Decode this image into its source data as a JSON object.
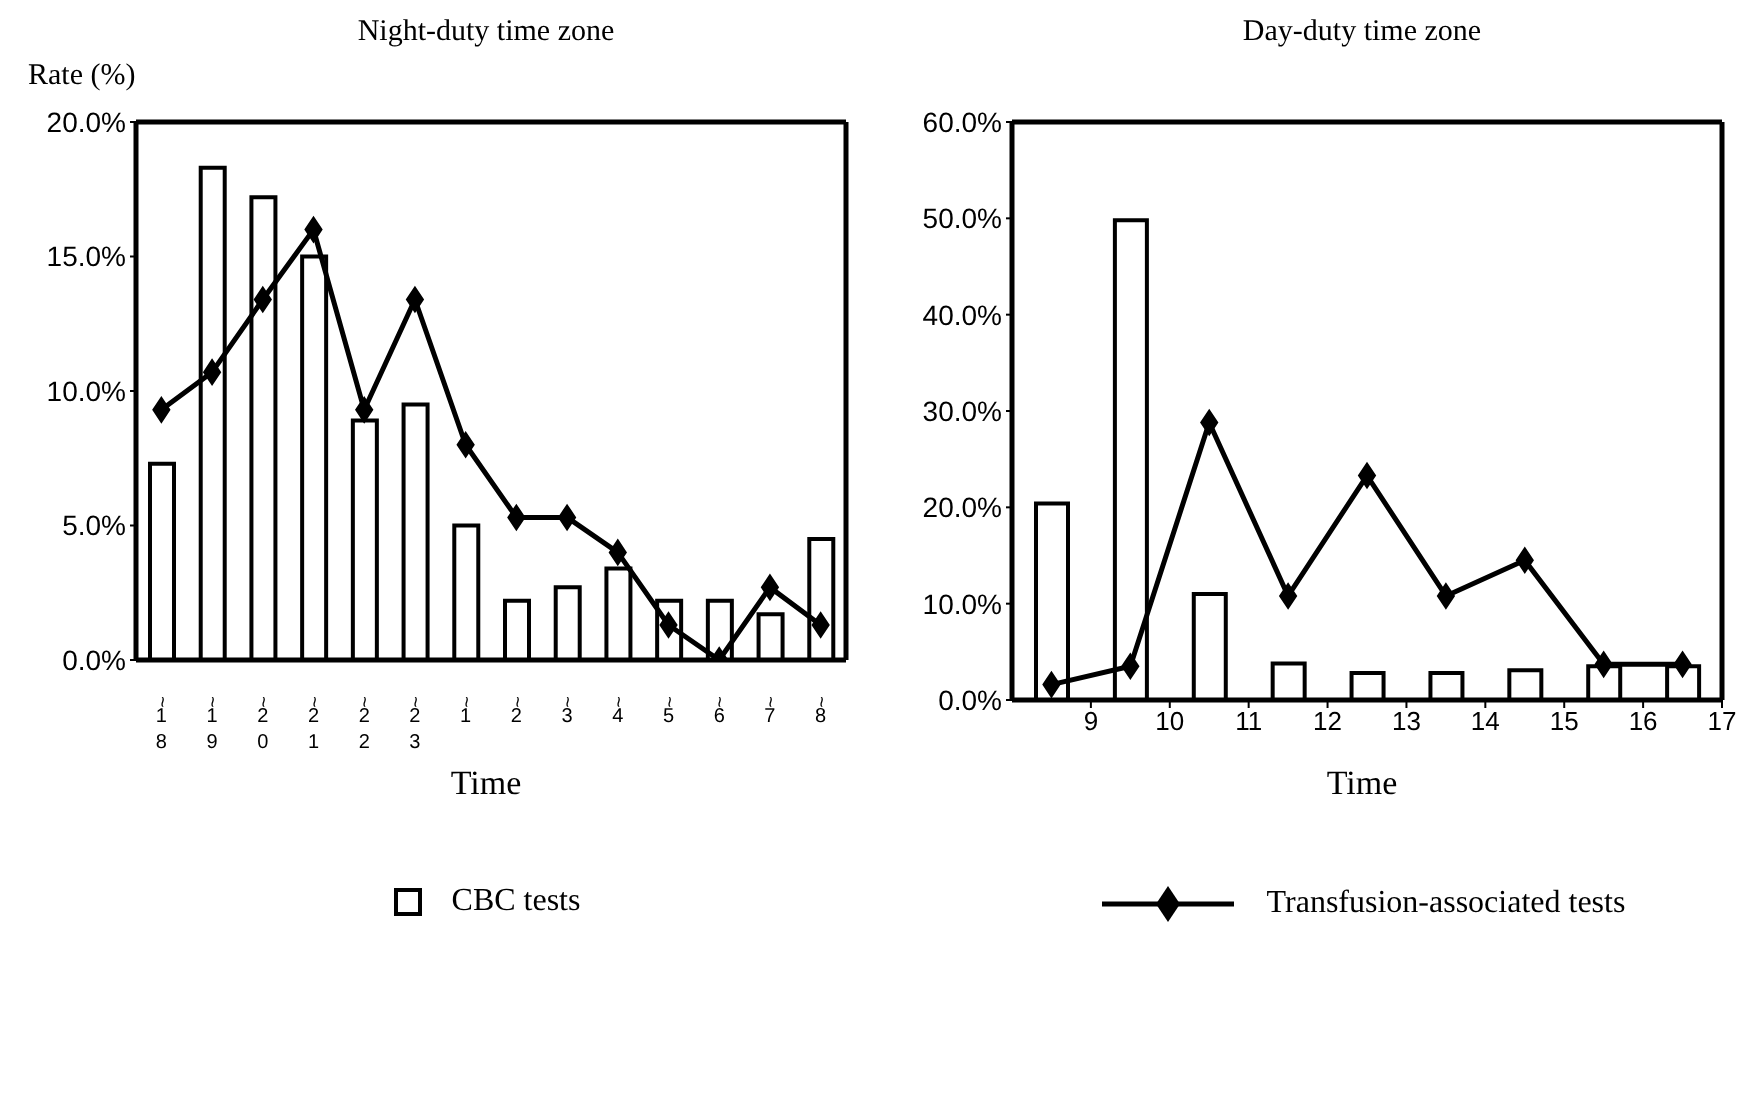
{
  "chart_data": [
    {
      "type": "bar",
      "title": "Night-duty time zone",
      "ylabel": "Rate (%)",
      "xlabel": "Time",
      "categories": [
        "~18",
        "~19",
        "~20",
        "~21",
        "~22",
        "~23",
        "~1",
        "~2",
        "~3",
        "~4",
        "~5",
        "~6",
        "~7",
        "~8"
      ],
      "series": [
        {
          "name": "CBC tests",
          "color": "#000000",
          "values": [
            7.3,
            18.3,
            17.2,
            15.0,
            8.9,
            9.5,
            5.0,
            2.2,
            2.7,
            3.4,
            2.2,
            2.2,
            1.7,
            4.5
          ]
        },
        {
          "type": "line",
          "color": "#000000",
          "marker": "diamond",
          "values": [
            9.3,
            10.7,
            13.4,
            16.0,
            9.3,
            13.4,
            8.0,
            5.3,
            5.3,
            4.0,
            1.3,
            0,
            2.7,
            1.3
          ]
        }
      ],
      "ylim": [
        0,
        20
      ],
      "yticks": [
        {
          "value": 0,
          "label": "0.0%"
        },
        {
          "value": 5,
          "label": "5.0%"
        },
        {
          "value": 10,
          "label": "10.0%"
        },
        {
          "value": 15,
          "label": "15.0%"
        },
        {
          "value": 20,
          "label": "20.0%"
        }
      ],
      "grid": false,
      "legend": "bottom"
    },
    {
      "type": "bar",
      "title": "Day-duty time zone",
      "xlabel": "Time",
      "x": [
        8.5,
        9.5,
        10.5,
        11.5,
        12.5,
        13.5,
        14.5,
        15.5,
        16.5
      ],
      "series": [
        {
          "color": "#000000",
          "values": [
            20.4,
            49.8,
            11.0,
            3.8,
            2.8,
            2.8,
            3.1,
            3.5,
            3.5
          ]
        },
        {
          "name": "Transfusion-associated tests",
          "type": "line",
          "color": "#000000",
          "marker": "diamond",
          "values": [
            1.6,
            3.5,
            28.8,
            10.8,
            23.3,
            10.8,
            14.5,
            3.7,
            3.7
          ]
        }
      ],
      "xlim": [
        8,
        17
      ],
      "xticks": [
        9,
        10,
        11,
        12,
        13,
        14,
        15,
        16,
        17
      ],
      "ylim": [
        0,
        60
      ],
      "yticks": [
        {
          "value": 0,
          "label": "0.0%"
        },
        {
          "value": 10,
          "label": "10.0%"
        },
        {
          "value": 20,
          "label": "20.0%"
        },
        {
          "value": 30,
          "label": "30.0%"
        },
        {
          "value": 40,
          "label": "40.0%"
        },
        {
          "value": 50,
          "label": "50.0%"
        },
        {
          "value": 60,
          "label": "60.0%"
        }
      ],
      "grid": false,
      "legend": "bottom"
    }
  ]
}
